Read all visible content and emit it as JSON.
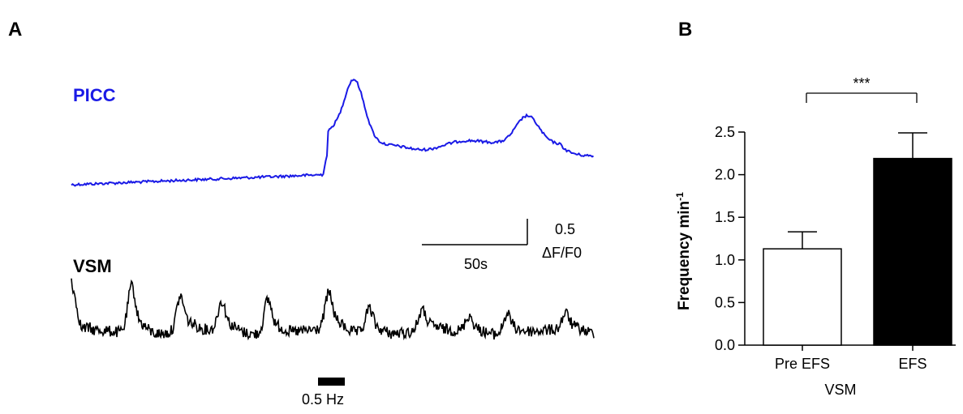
{
  "panel_a": {
    "label": "A",
    "traces": [
      {
        "name": "PICC",
        "color": "#1a1ae6"
      },
      {
        "name": "VSM",
        "color": "#000000"
      }
    ],
    "scale_time": "50s",
    "scale_amp_value": "0.5",
    "scale_amp_unit": "ΔF/F0",
    "stim_label": "0.5 Hz"
  },
  "panel_b": {
    "label": "B",
    "significance": "***",
    "ylabel_main": "Frequency min",
    "ylabel_sup": "-1",
    "xlabel": "VSM"
  },
  "chart_data": [
    {
      "type": "line",
      "title": "",
      "series": [
        {
          "name": "PICC",
          "color": "#1a1ae6"
        },
        {
          "name": "VSM",
          "color": "#000000"
        }
      ],
      "scale_bars": {
        "time": "50s",
        "amplitude": "0.5 ΔF/F0"
      },
      "stimulus": "0.5 Hz"
    },
    {
      "type": "bar",
      "title": "",
      "categories": [
        "Pre EFS",
        "EFS"
      ],
      "values": [
        1.13,
        2.19
      ],
      "errors": [
        0.2,
        0.3
      ],
      "fills": [
        "#ffffff",
        "#000000"
      ],
      "xlabel": "VSM",
      "ylabel": "Frequency min-1",
      "ylim": [
        0,
        2.5
      ],
      "yticks": [
        "0.0",
        "0.5",
        "1.0",
        "1.5",
        "2.0",
        "2.5"
      ],
      "significance": "***"
    }
  ]
}
